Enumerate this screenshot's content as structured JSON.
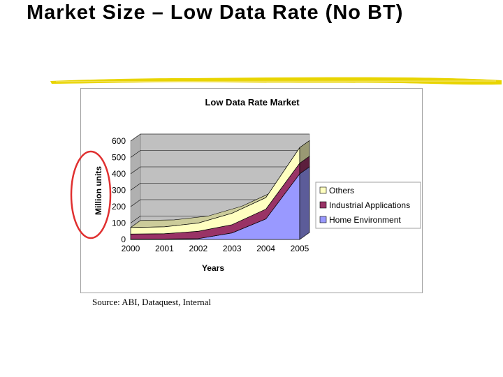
{
  "slide": {
    "title": "Market Size – Low Data Rate (No BT)",
    "source": "Source:  ABI, Dataquest, Internal"
  },
  "colors": {
    "rule": "#e8d400",
    "annotation": "#e03030",
    "others": "#ffffc0",
    "industrial": "#993366",
    "home": "#9999ff",
    "plot_wall": "#c0c0c0"
  },
  "chart_data": {
    "type": "area",
    "stacked": true,
    "three_d": true,
    "title": "Low Data Rate Market",
    "xlabel": "Years",
    "ylabel": "Million units",
    "categories": [
      "2000",
      "2001",
      "2002",
      "2003",
      "2004",
      "2005"
    ],
    "ylim": [
      0,
      600
    ],
    "yticks": [
      0,
      100,
      200,
      300,
      400,
      500,
      600
    ],
    "grid": true,
    "legend_position": "right",
    "series": [
      {
        "name": "Home Environment",
        "values": [
          3,
          3,
          5,
          40,
          125,
          400
        ],
        "color": "#9999ff"
      },
      {
        "name": "Industrial Applications",
        "values": [
          30,
          32,
          45,
          50,
          60,
          65
        ],
        "color": "#993366"
      },
      {
        "name": "Others",
        "values": [
          40,
          42,
          50,
          70,
          70,
          95
        ],
        "color": "#ffffc0"
      }
    ],
    "legend_order": [
      "Others",
      "Industrial Applications",
      "Home Environment"
    ]
  }
}
